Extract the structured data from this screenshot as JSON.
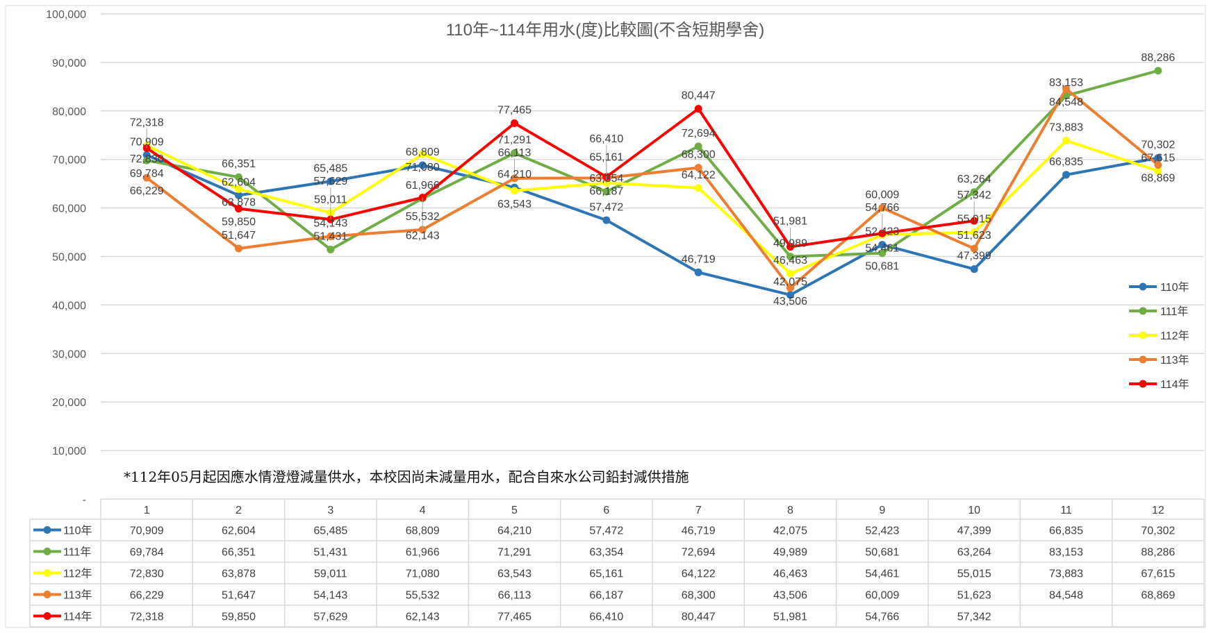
{
  "chart_data": {
    "type": "line",
    "title": "110年~114年用水(度)比較圖(不含短期學舍)",
    "note": "*112年05月起因應水情澄燈減量供水，本校因尚未減量用水，配合自來水公司鉛封減供措施",
    "xlabel": "",
    "ylabel": "",
    "ylim": [
      0,
      100000
    ],
    "yticks": [
      0,
      10000,
      20000,
      30000,
      40000,
      50000,
      60000,
      70000,
      80000,
      90000,
      100000
    ],
    "ytick_labels": [
      "-",
      "10,000",
      "20,000",
      "30,000",
      "40,000",
      "50,000",
      "60,000",
      "70,000",
      "80,000",
      "90,000",
      "100,000"
    ],
    "grid": true,
    "legend_position": "right",
    "categories": [
      "1",
      "2",
      "3",
      "4",
      "5",
      "6",
      "7",
      "8",
      "9",
      "10",
      "11",
      "12"
    ],
    "series": [
      {
        "name": "110年",
        "color": "#2e75b6",
        "values": [
          70909,
          62604,
          65485,
          68809,
          64210,
          57472,
          46719,
          42075,
          52423,
          47399,
          66835,
          70302
        ]
      },
      {
        "name": "111年",
        "color": "#70ad47",
        "values": [
          69784,
          66351,
          51431,
          61966,
          71291,
          63354,
          72694,
          49989,
          50681,
          63264,
          83153,
          88286
        ]
      },
      {
        "name": "112年",
        "color": "#ffff00",
        "values": [
          72830,
          63878,
          59011,
          71080,
          63543,
          65161,
          64122,
          46463,
          54461,
          55015,
          73883,
          67615
        ]
      },
      {
        "name": "113年",
        "color": "#ed7d31",
        "values": [
          66229,
          51647,
          54143,
          55532,
          66113,
          66187,
          68300,
          43506,
          60009,
          51623,
          84548,
          68869
        ]
      },
      {
        "name": "114年",
        "color": "#ff0000",
        "values": [
          72318,
          59850,
          57629,
          62143,
          77465,
          66410,
          80447,
          51981,
          54766,
          57342,
          null,
          null
        ]
      }
    ]
  }
}
